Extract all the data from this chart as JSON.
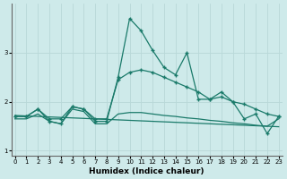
{
  "xlabel": "Humidex (Indice chaleur)",
  "x": [
    0,
    1,
    2,
    3,
    4,
    5,
    6,
    7,
    8,
    9,
    10,
    11,
    12,
    13,
    14,
    15,
    16,
    17,
    18,
    19,
    20,
    21,
    22,
    23
  ],
  "curve_main": [
    1.7,
    1.7,
    1.85,
    1.6,
    1.55,
    1.9,
    1.85,
    1.6,
    1.6,
    2.5,
    3.7,
    3.45,
    3.05,
    2.7,
    2.55,
    3.0,
    2.05,
    2.05,
    2.2,
    2.0,
    1.65,
    1.75,
    1.35,
    1.7
  ],
  "curve_lower": [
    1.7,
    1.7,
    1.85,
    1.65,
    1.65,
    1.9,
    1.85,
    1.65,
    1.65,
    2.45,
    2.6,
    2.65,
    2.6,
    2.5,
    2.4,
    2.3,
    2.2,
    2.05,
    2.1,
    2.0,
    1.95,
    1.85,
    1.75,
    1.7
  ],
  "curve_flat": [
    1.65,
    1.65,
    1.75,
    1.6,
    1.55,
    1.85,
    1.8,
    1.55,
    1.55,
    1.75,
    1.78,
    1.78,
    1.75,
    1.72,
    1.7,
    1.67,
    1.65,
    1.62,
    1.6,
    1.57,
    1.55,
    1.52,
    1.5,
    1.65
  ],
  "curve_reg": [
    1.72,
    1.71,
    1.7,
    1.69,
    1.68,
    1.67,
    1.66,
    1.65,
    1.64,
    1.63,
    1.62,
    1.61,
    1.6,
    1.59,
    1.58,
    1.57,
    1.56,
    1.55,
    1.54,
    1.53,
    1.52,
    1.51,
    1.5,
    1.49
  ],
  "bg_color": "#ceeaea",
  "line_color": "#1a7a6a",
  "grid_color": "#b8d8d8",
  "ylim": [
    0.9,
    4.0
  ],
  "xlim": [
    -0.3,
    23.3
  ],
  "yticks": [
    1,
    2,
    3
  ],
  "xticks": [
    0,
    1,
    2,
    3,
    4,
    5,
    6,
    7,
    8,
    9,
    10,
    11,
    12,
    13,
    14,
    15,
    16,
    17,
    18,
    19,
    20,
    21,
    22,
    23
  ]
}
